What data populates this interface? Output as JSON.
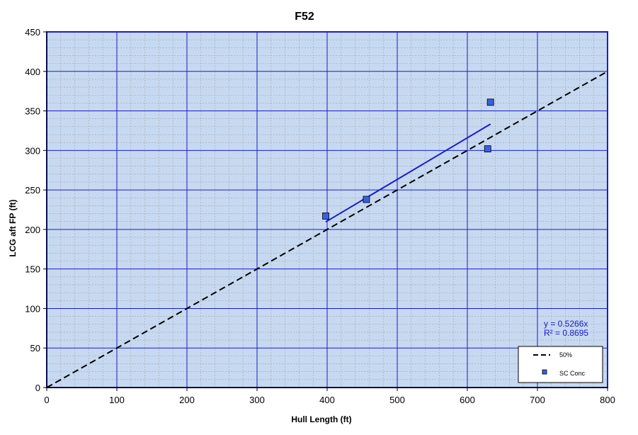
{
  "chart_data": {
    "type": "scatter",
    "title": "F52",
    "xlabel": "Hull Length (ft)",
    "ylabel": "LCG aft FP (ft)",
    "xlim": [
      0,
      800
    ],
    "ylim": [
      0,
      450
    ],
    "x_ticks": [
      0,
      100,
      200,
      300,
      400,
      500,
      600,
      700,
      800
    ],
    "y_ticks": [
      0,
      50,
      100,
      150,
      200,
      250,
      300,
      350,
      400,
      450
    ],
    "grid": true,
    "legend_position": "bottom-right",
    "series": [
      {
        "name": "50%",
        "kind": "line",
        "style": "dashed",
        "color": "#000000",
        "x": [
          0,
          800
        ],
        "y": [
          0,
          400
        ]
      },
      {
        "name": "SC Conc",
        "kind": "scatter",
        "marker": "square",
        "color": "#3a5fe0",
        "x": [
          398,
          456,
          629,
          633
        ],
        "y": [
          217,
          238,
          302,
          361
        ]
      }
    ],
    "trendline": {
      "type": "linear-through-origin",
      "slope": 0.5266,
      "x_range": [
        398,
        633
      ],
      "color": "#1a1acd",
      "equation": "y = 0.5266x",
      "r_squared": "R² = 0.8695"
    },
    "colors": {
      "plot_background": "#c6d9f1",
      "major_grid": "#1c1cc8",
      "minor_grid": "#a4a4a4",
      "axis": "#000000"
    }
  }
}
